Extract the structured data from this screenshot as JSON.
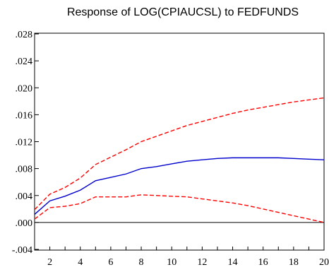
{
  "chart_data": {
    "type": "line",
    "title": "Response of LOG(CPIAUCSL) to FEDFUNDS",
    "xlabel": "",
    "ylabel": "",
    "xlim": [
      1,
      20
    ],
    "ylim": [
      -0.004,
      0.028
    ],
    "x_ticks": [
      2,
      4,
      6,
      8,
      10,
      12,
      14,
      16,
      18,
      20
    ],
    "y_ticks": [
      -0.004,
      0.0,
      0.004,
      0.008,
      0.012,
      0.016,
      0.02,
      0.024,
      0.028
    ],
    "y_tick_labels": [
      "-.004",
      ".000",
      ".004",
      ".008",
      ".012",
      ".016",
      ".020",
      ".024",
      ".028"
    ],
    "zero_line": true,
    "grid": false,
    "x": [
      1,
      2,
      3,
      4,
      5,
      6,
      7,
      8,
      9,
      10,
      11,
      12,
      13,
      14,
      15,
      16,
      17,
      18,
      19,
      20
    ],
    "series": [
      {
        "role": "response",
        "color": "#0000cc",
        "dash": "solid",
        "values": [
          0.0012,
          0.0032,
          0.0039,
          0.0048,
          0.0062,
          0.0067,
          0.0072,
          0.008,
          0.0083,
          0.0087,
          0.0091,
          0.0093,
          0.0095,
          0.0096,
          0.0096,
          0.0096,
          0.0096,
          0.0095,
          0.0094,
          0.0093
        ]
      },
      {
        "role": "upper-band",
        "color": "#ff0000",
        "dash": "dashed",
        "values": [
          0.0019,
          0.0042,
          0.0052,
          0.0066,
          0.0086,
          0.0097,
          0.0108,
          0.012,
          0.0128,
          0.0136,
          0.0144,
          0.015,
          0.0156,
          0.0162,
          0.0167,
          0.0171,
          0.0175,
          0.0179,
          0.0182,
          0.0185
        ]
      },
      {
        "role": "lower-band",
        "color": "#ff0000",
        "dash": "dashed",
        "values": [
          0.0005,
          0.0022,
          0.0024,
          0.0028,
          0.0038,
          0.0038,
          0.0038,
          0.0041,
          0.004,
          0.0039,
          0.0038,
          0.0035,
          0.0032,
          0.0029,
          0.0025,
          0.002,
          0.0015,
          0.001,
          0.0005,
          0.0
        ]
      }
    ]
  }
}
